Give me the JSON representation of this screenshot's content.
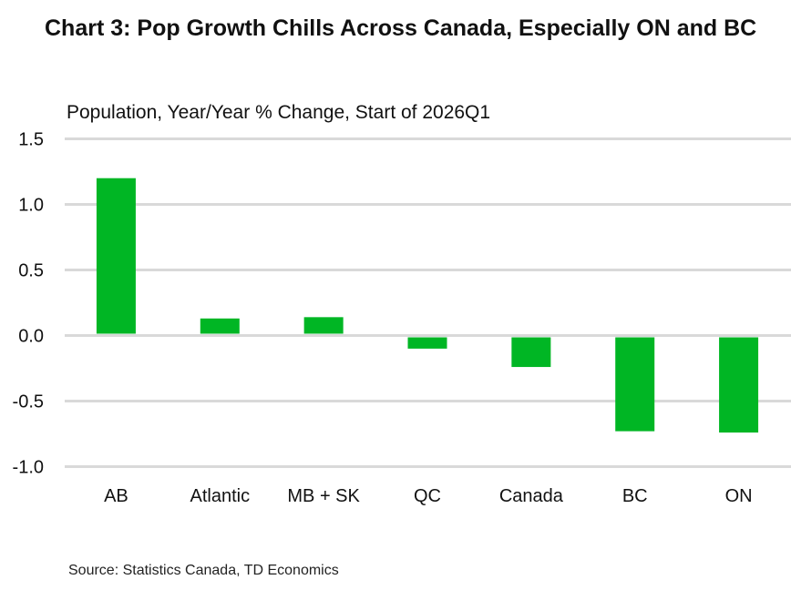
{
  "chart_data": {
    "type": "bar",
    "title": "Chart 3: Pop Growth Chills Across Canada, Especially ON and BC",
    "subtitle": "Population, Year/Year % Change, Start of 2026Q1",
    "categories": [
      "AB",
      "Atlantic",
      "MB + SK",
      "QC",
      "Canada",
      "BC",
      "ON"
    ],
    "values": [
      1.2,
      0.13,
      0.14,
      -0.1,
      -0.24,
      -0.73,
      -0.74
    ],
    "ylim": [
      -1.0,
      1.5
    ],
    "yticks": [
      "1.5",
      "1.0",
      "0.5",
      "0.0",
      "-0.5",
      "-1.0"
    ],
    "xlabel": "",
    "ylabel": "",
    "grid": true,
    "bar_color": "#00b624",
    "grid_color": "#d9d9d9"
  },
  "source": "Source: Statistics Canada, TD Economics"
}
